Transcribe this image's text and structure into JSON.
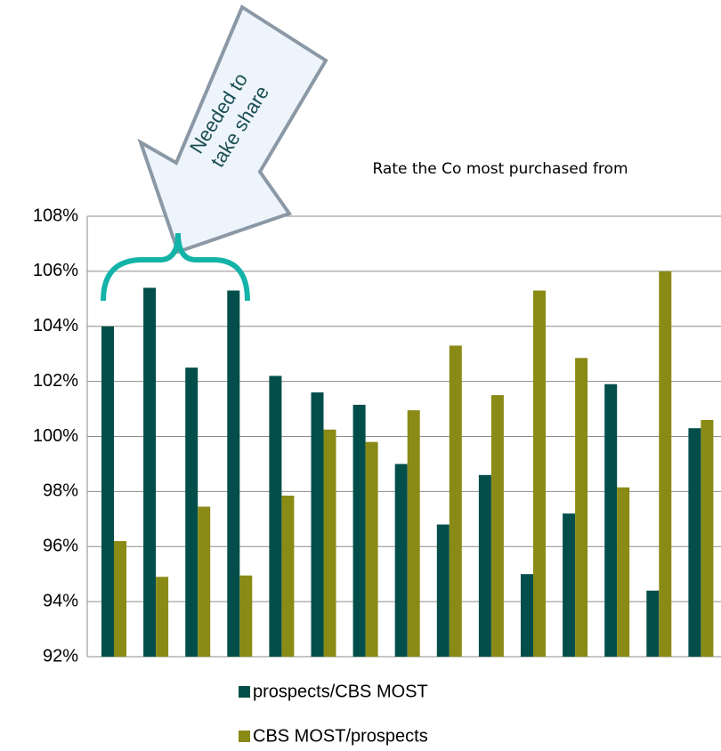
{
  "chart_data": {
    "type": "bar",
    "title": "Rate the Co most purchased  from",
    "annotation": [
      "Needed to",
      "take share"
    ],
    "categories": [
      null,
      null,
      null,
      null,
      null,
      null,
      null,
      null,
      null,
      null,
      null,
      null,
      null,
      null,
      null
    ],
    "series": [
      {
        "name": "prospects/CBS MOST",
        "color": "#034e4a",
        "values": [
          104.0,
          105.4,
          102.5,
          105.3,
          102.2,
          101.6,
          101.15,
          99.0,
          96.8,
          98.6,
          95.0,
          97.2,
          101.9,
          94.4,
          100.3
        ]
      },
      {
        "name": "CBS MOST/prospects",
        "color": "#8a8a16",
        "values": [
          96.2,
          94.9,
          97.45,
          94.95,
          97.85,
          100.25,
          99.8,
          100.95,
          103.3,
          101.5,
          105.3,
          102.85,
          98.15,
          106.0,
          100.6
        ]
      }
    ],
    "ylim": [
      92,
      108
    ],
    "yticks": [
      {
        "value": 92,
        "label": "92%"
      },
      {
        "value": 94,
        "label": "94%"
      },
      {
        "value": 96,
        "label": "96%"
      },
      {
        "value": 98,
        "label": "98%"
      },
      {
        "value": 100,
        "label": "100%"
      },
      {
        "value": 102,
        "label": "102%"
      },
      {
        "value": 104,
        "label": "104%"
      },
      {
        "value": 106,
        "label": "106%"
      },
      {
        "value": 108,
        "label": "108%"
      }
    ],
    "grid": true,
    "legend": "bottom"
  }
}
